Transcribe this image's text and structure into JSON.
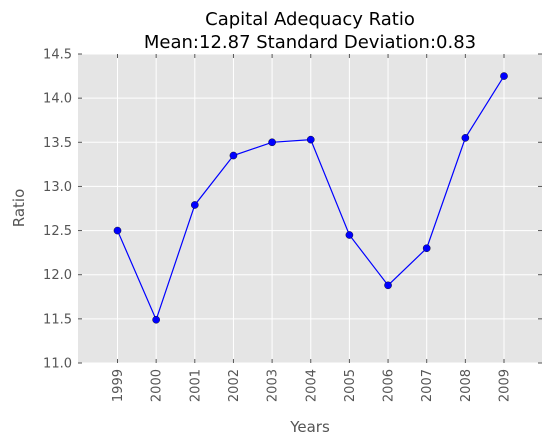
{
  "chart_data": {
    "type": "line",
    "title_line1": "Capital Adequacy Ratio",
    "title_line2": "Mean:12.87 Standard Deviation:0.83",
    "xlabel": "Years",
    "ylabel": "Ratio",
    "ylim": [
      11.0,
      14.5
    ],
    "yticks": [
      "11.0",
      "11.5",
      "12.0",
      "12.5",
      "13.0",
      "13.5",
      "14.0",
      "14.5"
    ],
    "categories": [
      "1999",
      "2000",
      "2001",
      "2002",
      "2003",
      "2004",
      "2005",
      "2006",
      "2007",
      "2008",
      "2009"
    ],
    "values": [
      12.5,
      11.49,
      12.79,
      13.35,
      13.5,
      13.53,
      12.45,
      11.88,
      12.3,
      13.55,
      14.25
    ],
    "grid": true,
    "series_color": "#0000ff",
    "plot_background": "#e5e5e5"
  }
}
